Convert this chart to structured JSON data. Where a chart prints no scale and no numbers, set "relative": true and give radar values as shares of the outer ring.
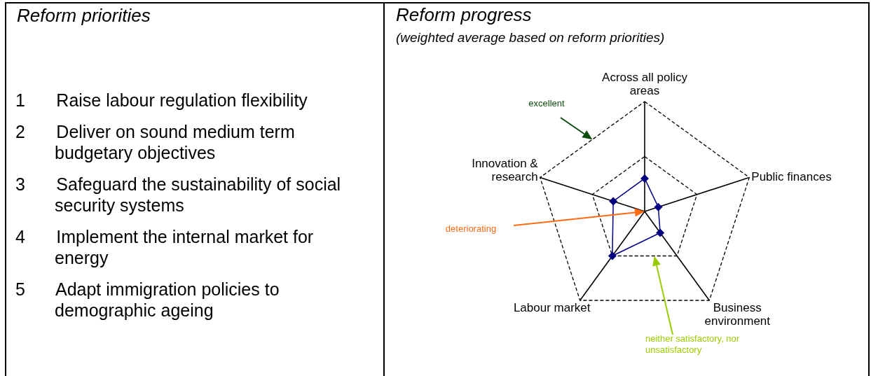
{
  "chart_data": [
    {
      "type": "other",
      "title": "Reform priorities",
      "annotations": [
        "1 Raise labour regulation flexibility",
        "2 Deliver on sound medium term budgetary objectives",
        "3 Safeguard the sustainability of social security systems",
        "4 Implement the internal market for energy",
        "5 Adapt immigration policies to demographic ageing"
      ]
    },
    {
      "type": "radar",
      "title": "Reform progress",
      "subtitle": "(weighted average based on reform priorities)",
      "relative": true,
      "grid": true,
      "marker": "diamond",
      "categories": [
        "Across all policy areas",
        "Public finances",
        "Business environment",
        "Labour market",
        "Innovation & research"
      ],
      "series": [
        {
          "color": "#000080",
          "values": [
            0.3,
            0.13,
            0.24,
            0.5,
            0.3
          ]
        }
      ],
      "annotations": [
        "excellent",
        "deteriorating",
        "neither satisfactory, nor unsatisfactory"
      ]
    }
  ]
}
